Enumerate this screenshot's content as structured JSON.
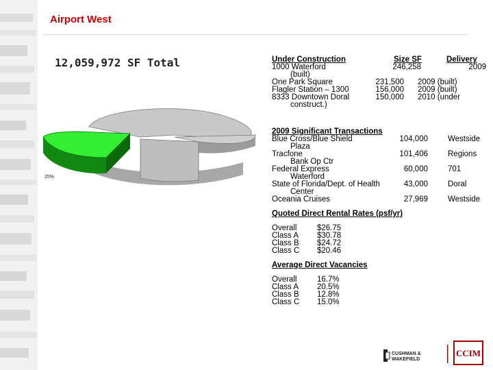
{
  "header": {
    "title": "Airport West"
  },
  "summary": {
    "total": "12,059,972 SF Total"
  },
  "pie": {
    "label_25": "25%",
    "colors": {
      "highlight": "#33ee33",
      "base": "#c8c8c8"
    }
  },
  "under_construction": {
    "heading": "Under Construction",
    "size_heading": "Size SF",
    "delivery_heading": "Delivery",
    "items": [
      {
        "name": "1000 Waterford",
        "name_cont": "(built)",
        "size": "246,258",
        "delivery": "2009"
      },
      {
        "name": "One Park Square",
        "size": "231,500",
        "delivery": "2009 (built)"
      },
      {
        "name": "Flagler Station – 1300",
        "size": "156,000",
        "delivery": "2009 (built)"
      },
      {
        "name": "8333 Downtown Doral",
        "name_cont": "construct.)",
        "size": "150,000",
        "delivery": "2010 (under"
      }
    ]
  },
  "transactions": {
    "heading": "2009 Significant Transactions",
    "items": [
      {
        "name": "Blue Cross/Blue Shield",
        "name_cont": "Plaza",
        "size": "104,000",
        "area": "Westside"
      },
      {
        "name": "Tracfone",
        "name_cont": "Bank Op Ctr",
        "size": "101,406",
        "area": "Regions"
      },
      {
        "name": "Federal Express",
        "name_cont": "Waterford",
        "size": "60,000",
        "area": "701"
      },
      {
        "name": "State of Florida/Dept. of Health",
        "name_cont": "Center",
        "size": "43,000",
        "area": "Doral"
      },
      {
        "name": "Oceania Cruises",
        "size": "27,969",
        "area": "Westside"
      }
    ]
  },
  "rates": {
    "heading": "Quoted Direct Rental Rates (psf/yr)",
    "items": [
      {
        "label": "Overall",
        "value": "$26.75"
      },
      {
        "label": "Class A",
        "value": "$30.78"
      },
      {
        "label": "Class B",
        "value": "$24.72"
      },
      {
        "label": "Class C",
        "value": "$20.46"
      }
    ]
  },
  "vacancies": {
    "heading": "Average Direct Vacancies",
    "items": [
      {
        "label": "Overall",
        "value": "16.7%"
      },
      {
        "label": "Class A",
        "value": "20.5%"
      },
      {
        "label": "Class B",
        "value": "12.8%"
      },
      {
        "label": "Class C",
        "value": "15.0%"
      }
    ]
  },
  "footer": {
    "cw_line1": "CUSHMAN &",
    "cw_line2": "WAKEFIELD",
    "ccim": "CCIM"
  }
}
